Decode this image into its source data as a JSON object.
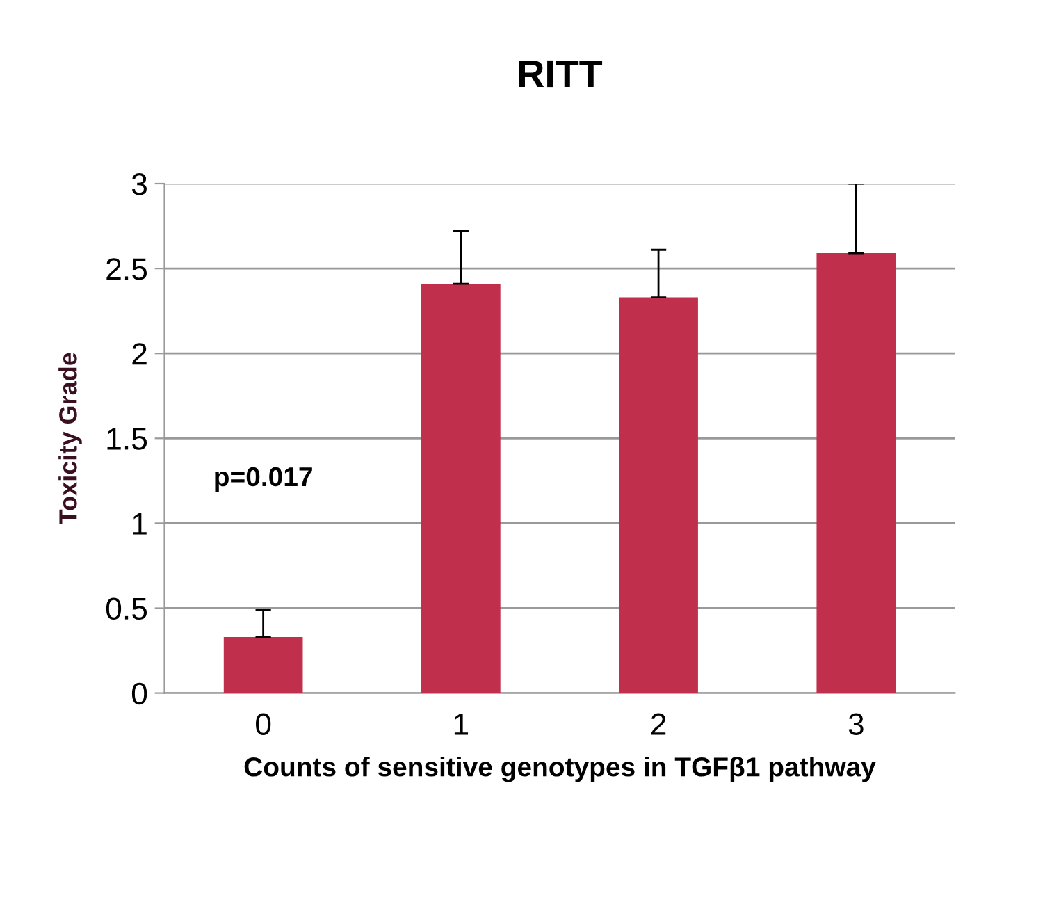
{
  "chart_data": {
    "type": "bar",
    "title": "RITT",
    "xlabel": "Counts of sensitive genotypes in TGFβ1 pathway",
    "ylabel": "Toxicity Grade",
    "categories": [
      "0",
      "1",
      "2",
      "3"
    ],
    "values": [
      0.33,
      2.41,
      2.33,
      2.59
    ],
    "errors": [
      [
        0.33,
        0.49
      ],
      [
        2.41,
        2.72
      ],
      [
        2.33,
        2.61
      ],
      [
        2.59,
        3.0
      ]
    ],
    "color": "#c0304c",
    "ylim": [
      0,
      3
    ],
    "yticks": [
      0,
      0.5,
      1,
      1.5,
      2,
      2.5,
      3
    ],
    "grid": "y",
    "annotations": [
      "p=0.017"
    ]
  }
}
